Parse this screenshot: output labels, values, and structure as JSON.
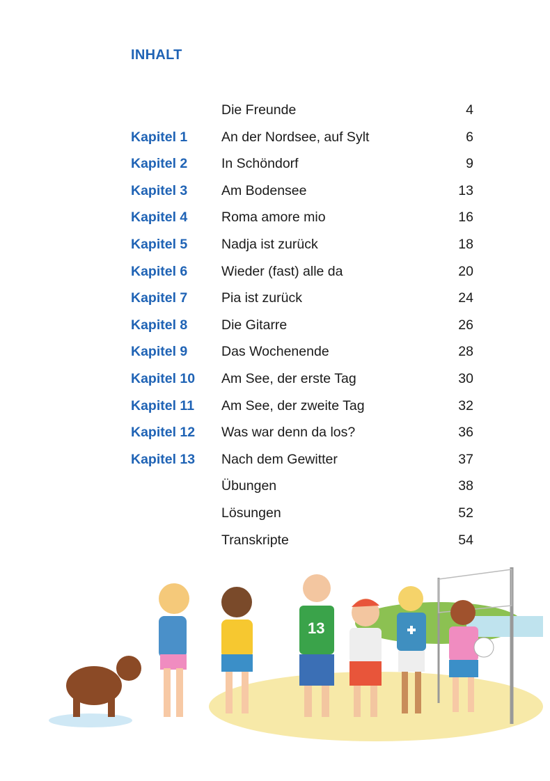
{
  "title": "INHALT",
  "toc": [
    {
      "chapter": "",
      "title": "Die Freunde",
      "page": "4"
    },
    {
      "chapter": "Kapitel 1",
      "title": "An der Nordsee, auf Sylt",
      "page": "6"
    },
    {
      "chapter": "Kapitel 2",
      "title": "In Schöndorf",
      "page": "9"
    },
    {
      "chapter": "Kapitel 3",
      "title": "Am Bodensee",
      "page": "13"
    },
    {
      "chapter": "Kapitel 4",
      "title": "Roma amore mio",
      "page": "16"
    },
    {
      "chapter": "Kapitel 5",
      "title": "Nadja ist zurück",
      "page": "18"
    },
    {
      "chapter": "Kapitel 6",
      "title": "Wieder (fast) alle da",
      "page": "20"
    },
    {
      "chapter": "Kapitel 7",
      "title": "Pia ist zurück",
      "page": "24"
    },
    {
      "chapter": "Kapitel 8",
      "title": "Die Gitarre",
      "page": "26"
    },
    {
      "chapter": "Kapitel 9",
      "title": "Das Wochenende",
      "page": "28"
    },
    {
      "chapter": "Kapitel 10",
      "title": "Am See, der erste Tag",
      "page": "30"
    },
    {
      "chapter": "Kapitel 11",
      "title": "Am See, der zweite Tag",
      "page": "32"
    },
    {
      "chapter": "Kapitel 12",
      "title": "Was war denn da los?",
      "page": "36"
    },
    {
      "chapter": "Kapitel 13",
      "title": "Nach dem Gewitter",
      "page": "37"
    },
    {
      "chapter": "",
      "title": "Übungen",
      "page": "38"
    },
    {
      "chapter": "",
      "title": "Lösungen",
      "page": "52"
    },
    {
      "chapter": "",
      "title": "Transkripte",
      "page": "54"
    }
  ],
  "illustration": {
    "shirt_number": "13"
  },
  "colors": {
    "accent": "#1f63b5",
    "text": "#1a1a1a"
  }
}
